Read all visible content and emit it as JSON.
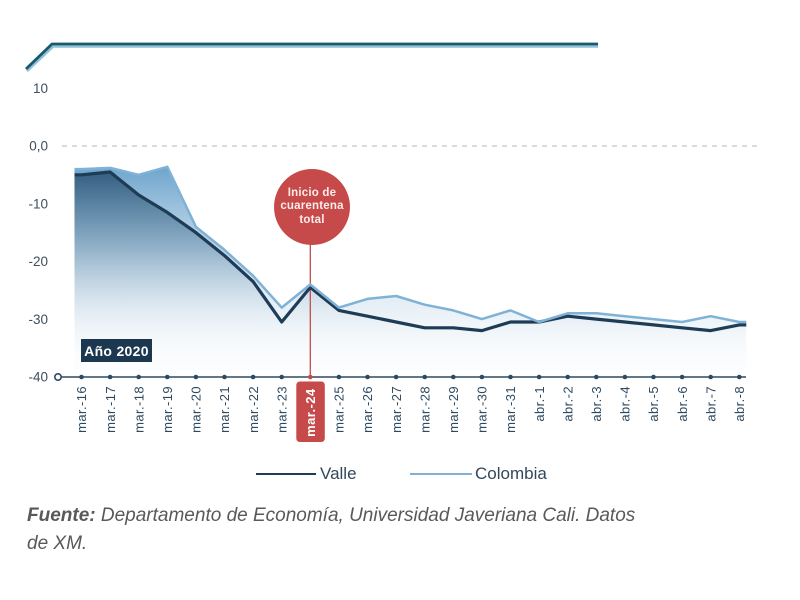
{
  "annotation": {
    "lines": [
      "Inicio de",
      "cuarentena",
      "total"
    ],
    "color": "#C64A4A"
  },
  "year_label": "Año 2020",
  "legend": [
    {
      "name": "Valle",
      "color": "#1E3C55"
    },
    {
      "name": "Colombia",
      "color": "#7FB2D6"
    }
  ],
  "source": {
    "prefix": "Fuente:",
    "line1": " Departamento de Economía, Universidad Javeriana Cali. Datos",
    "line2": "de XM."
  },
  "chart_data": {
    "type": "line",
    "title": "",
    "xlabel": "",
    "ylabel": "",
    "ylim": [
      -40,
      10
    ],
    "grid": "dashed horizontal line at 0 only",
    "legend_position": "bottom",
    "categories": [
      "mar.-16",
      "mar.-17",
      "mar.-18",
      "mar.-19",
      "mar.-20",
      "mar.-21",
      "mar.-22",
      "mar.-23",
      "mar.-24",
      "mar.-25",
      "mar.-26",
      "mar.-27",
      "mar.-28",
      "mar.-29",
      "mar.-30",
      "mar.-31",
      "abr.-1",
      "abr.-2",
      "abr.-3",
      "abr.-4",
      "abr.-5",
      "abr.-6",
      "abr.-7",
      "abr.-8"
    ],
    "series": [
      {
        "name": "Valle",
        "color": "#1E3C55",
        "values": [
          -5,
          -4.5,
          -8.5,
          -11.5,
          -15,
          -19,
          -23.5,
          -30.5,
          -24.5,
          -28.5,
          -29.5,
          -30.5,
          -31.5,
          -31.5,
          -32,
          -30.5,
          -30.5,
          -29.5,
          -30,
          -30.5,
          -31,
          -31.5,
          -32,
          -31
        ]
      },
      {
        "name": "Colombia",
        "color": "#7FB2D6",
        "values": [
          -4,
          -3.8,
          -5,
          -3.6,
          -14,
          -18,
          -22.5,
          -28,
          -24,
          -28,
          -26.5,
          -26,
          -27.5,
          -28.5,
          -30,
          -28.5,
          -30.5,
          -29,
          -29,
          -29.5,
          -30,
          -30.5,
          -29.5,
          -30.5
        ]
      }
    ],
    "y_ticks": [
      {
        "value": 10,
        "label": "10"
      },
      {
        "value": 0,
        "label": "0,0"
      },
      {
        "value": -10,
        "label": "-10"
      },
      {
        "value": -20,
        "label": "-20"
      },
      {
        "value": -30,
        "label": "-30"
      },
      {
        "value": -40,
        "label": "-40"
      }
    ],
    "highlight": {
      "index": 8,
      "label": "mar.-24",
      "color": "#C64A4A"
    },
    "annotation_text": "Inicio de cuarentena total"
  }
}
